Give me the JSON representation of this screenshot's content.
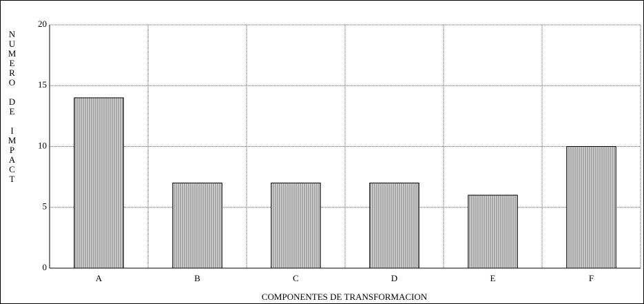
{
  "chart_data": {
    "type": "bar",
    "x_label": "COMPONENTES DE TRANSFORMACION",
    "y_label": "NUMERO DE IMPACT",
    "categories": [
      "A",
      "B",
      "C",
      "D",
      "E",
      "F"
    ],
    "values": [
      14,
      7,
      7,
      7,
      6,
      10
    ],
    "color": "#b8b8b8",
    "ylim": [
      0,
      20
    ],
    "yticks": [
      0,
      5,
      10,
      15,
      20
    ],
    "grid": true
  }
}
